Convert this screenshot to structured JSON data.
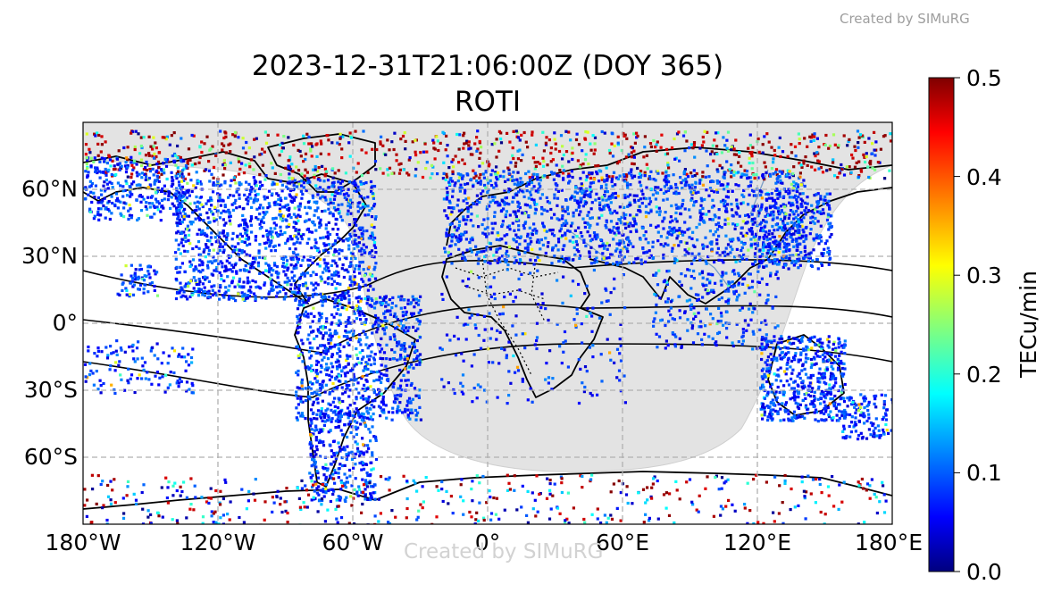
{
  "credit_top": "Created by SIMuRG",
  "credit_bottom": "Created by SIMuRG",
  "title_line1": "2023-12-31T21:06:00Z (DOY 365)",
  "title_line2": "ROTI",
  "colorbar": {
    "label": "TECu/min",
    "min": 0.0,
    "max": 0.5,
    "ticks": [
      "0.0",
      "0.1",
      "0.2",
      "0.3",
      "0.4",
      "0.5"
    ],
    "colormap": "jet"
  },
  "map": {
    "lon_range": [
      -180,
      180
    ],
    "lat_range": [
      -90,
      90
    ],
    "lon_ticks": [
      "180°W",
      "120°W",
      "60°W",
      "0°",
      "60°E",
      "120°E",
      "180°E"
    ],
    "lat_ticks": [
      "60°N",
      "30°N",
      "0°",
      "30°S",
      "60°S"
    ],
    "grid": true,
    "night_shading_color": "#e3e3e3",
    "coastline_color": "#000000",
    "river_color": "#7a9ec6"
  }
}
